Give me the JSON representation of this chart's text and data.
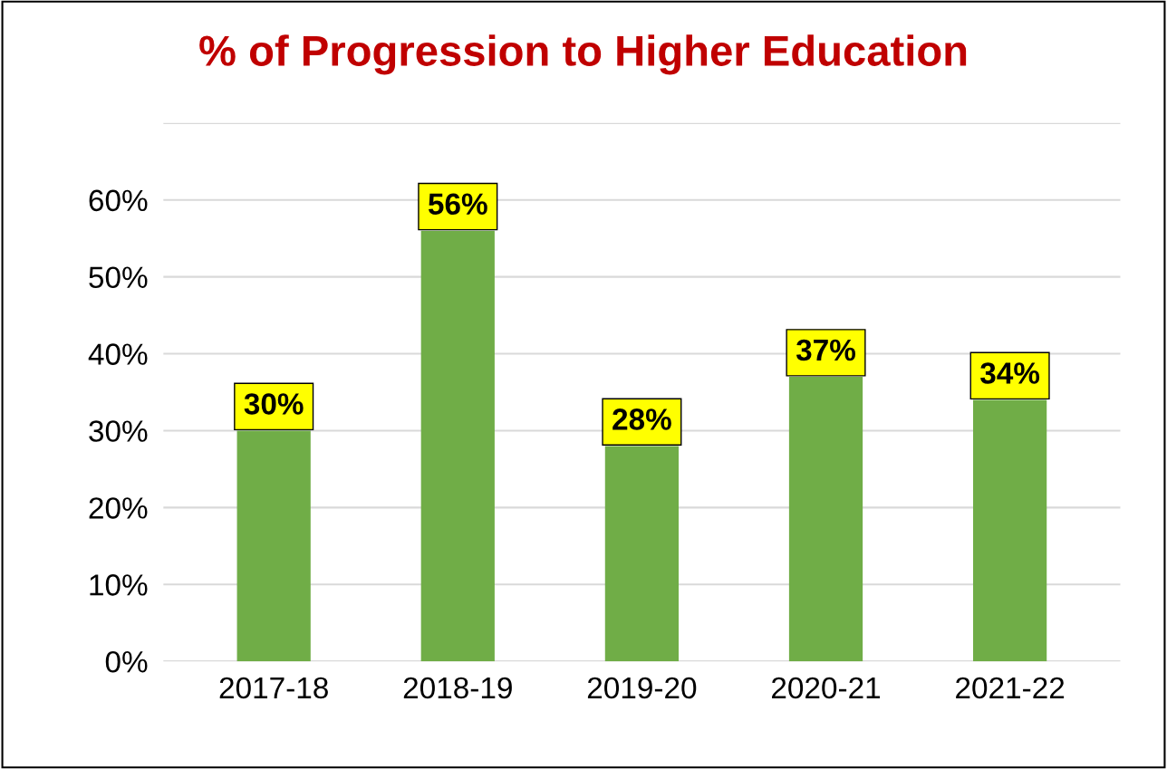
{
  "chart_data": {
    "type": "bar",
    "title": "% of Progression to Higher Education",
    "categories": [
      "2017-18",
      "2018-19",
      "2019-20",
      "2020-21",
      "2021-22"
    ],
    "values": [
      30,
      56,
      28,
      37,
      34
    ],
    "color": "#70ad47",
    "value_labels": [
      "30%",
      "56%",
      "28%",
      "37%",
      "34%"
    ],
    "ylim": [
      0,
      70
    ],
    "yticks": [
      {
        "value": 0,
        "label": "0%"
      },
      {
        "value": 10,
        "label": "10%"
      },
      {
        "value": 20,
        "label": "20%"
      },
      {
        "value": 30,
        "label": "30%"
      },
      {
        "value": 40,
        "label": "40%"
      },
      {
        "value": 50,
        "label": "50%"
      },
      {
        "value": 60,
        "label": "60%"
      },
      {
        "value": 70,
        "label": null
      }
    ],
    "grid": "y",
    "legend": false
  }
}
